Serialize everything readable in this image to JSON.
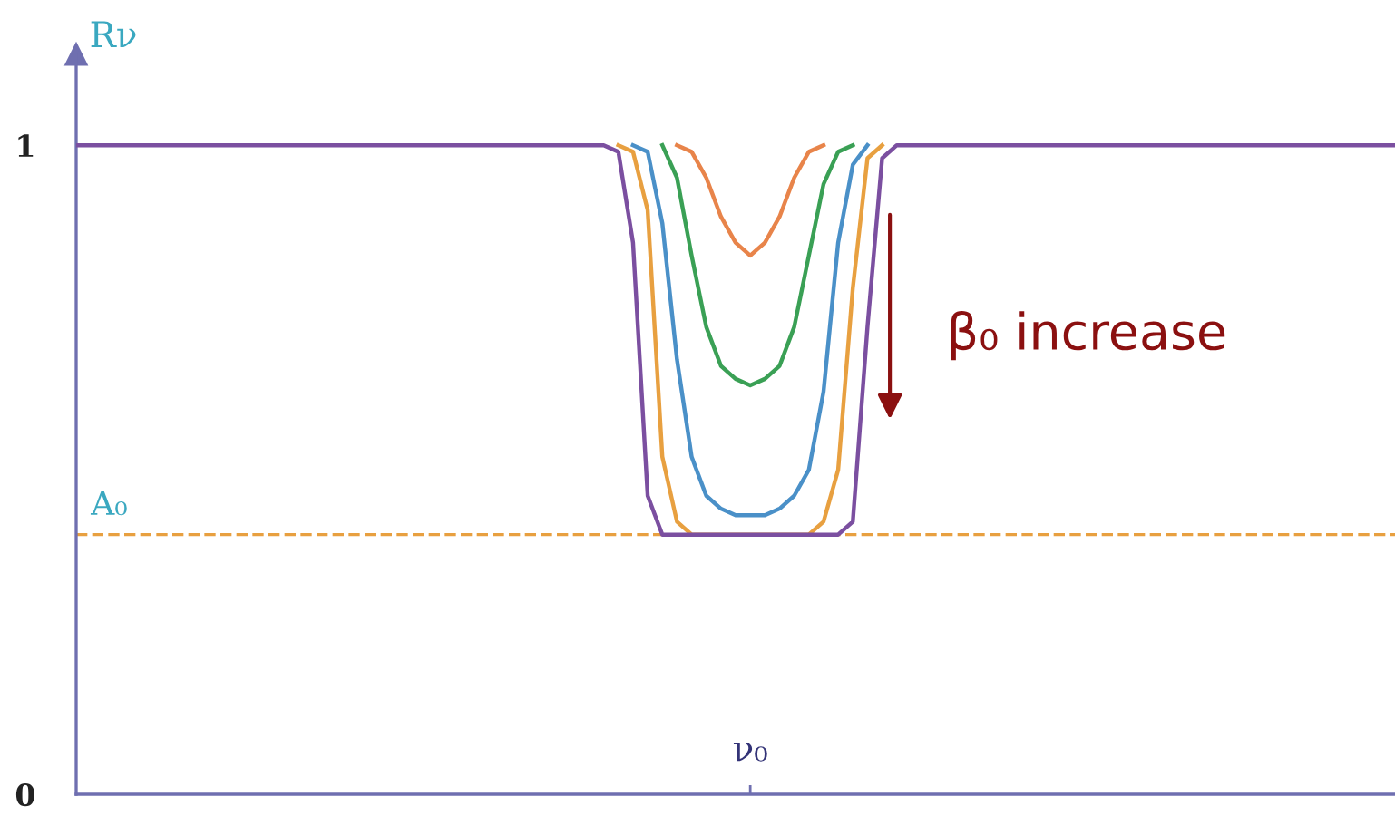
{
  "chart_data": {
    "type": "line",
    "ylabel": "Rν",
    "categories": [
      null,
      null,
      null,
      null,
      null,
      null,
      null,
      null,
      null,
      null,
      null,
      null,
      null,
      null,
      null,
      null,
      null,
      null,
      null,
      null,
      null,
      null,
      null,
      null,
      null,
      null,
      null,
      null,
      null,
      null,
      null,
      null,
      null,
      null,
      null,
      null,
      null,
      null,
      null,
      null,
      null,
      null,
      null,
      null,
      null,
      null,
      null,
      null,
      null,
      null,
      null,
      null,
      null,
      null,
      null,
      null,
      null,
      null,
      null,
      null,
      null,
      null,
      null,
      null,
      null,
      null,
      null,
      null,
      null,
      null,
      null,
      null,
      null,
      null,
      null,
      null,
      null,
      null,
      null,
      null,
      null,
      null,
      null,
      null,
      null,
      null,
      null,
      null,
      null,
      null,
      null
    ],
    "ylim": [
      0,
      1.14
    ],
    "yticks": [
      0,
      1
    ],
    "grid": false,
    "legend": false,
    "marker": "none",
    "line_style": "solid",
    "series": [
      {
        "color": "#7b4fa0",
        "values": [
          1,
          1,
          1,
          1,
          1,
          1,
          1,
          1,
          1,
          1,
          1,
          1,
          1,
          1,
          1,
          1,
          1,
          1,
          1,
          1,
          1,
          1,
          1,
          1,
          1,
          1,
          1,
          1,
          1,
          1,
          1,
          1,
          1,
          1,
          1,
          1,
          1,
          0.99,
          0.85,
          0.46,
          0.4,
          0.4,
          0.4,
          0.4,
          0.4,
          0.4,
          0.4,
          0.4,
          0.4,
          0.4,
          0.4,
          0.4,
          0.4,
          0.42,
          0.72,
          0.98,
          1,
          1,
          1,
          1,
          1,
          1,
          1,
          1,
          1,
          1,
          1,
          1,
          1,
          1,
          1,
          1,
          1,
          1,
          1,
          1,
          1,
          1,
          1,
          1,
          1,
          1,
          1,
          1,
          1,
          1,
          1,
          1,
          1,
          1,
          1
        ]
      },
      {
        "color": "#e8a040",
        "values": [
          null,
          null,
          null,
          null,
          null,
          null,
          null,
          null,
          null,
          null,
          null,
          null,
          null,
          null,
          null,
          null,
          null,
          null,
          null,
          null,
          null,
          null,
          null,
          null,
          null,
          null,
          null,
          null,
          null,
          null,
          null,
          null,
          null,
          null,
          null,
          null,
          null,
          1,
          0.99,
          0.9,
          0.52,
          0.42,
          0.4,
          0.4,
          0.4,
          0.4,
          0.4,
          0.4,
          0.4,
          0.4,
          0.4,
          0.42,
          0.5,
          0.78,
          0.98,
          1,
          null,
          null,
          null,
          null,
          null,
          null,
          null,
          null,
          null,
          null,
          null,
          null,
          null,
          null,
          null,
          null,
          null,
          null,
          null,
          null,
          null,
          null,
          null,
          null,
          null,
          null,
          null,
          null,
          null,
          null,
          null,
          null,
          null,
          null,
          null
        ]
      },
      {
        "color": "#4a90c8",
        "values": [
          null,
          null,
          null,
          null,
          null,
          null,
          null,
          null,
          null,
          null,
          null,
          null,
          null,
          null,
          null,
          null,
          null,
          null,
          null,
          null,
          null,
          null,
          null,
          null,
          null,
          null,
          null,
          null,
          null,
          null,
          null,
          null,
          null,
          null,
          null,
          null,
          null,
          null,
          1,
          0.99,
          0.88,
          0.67,
          0.52,
          0.46,
          0.44,
          0.43,
          0.43,
          0.43,
          0.44,
          0.46,
          0.5,
          0.62,
          0.85,
          0.97,
          1,
          null,
          null,
          null,
          null,
          null,
          null,
          null,
          null,
          null,
          null,
          null,
          null,
          null,
          null,
          null,
          null,
          null,
          null,
          null,
          null,
          null,
          null,
          null,
          null,
          null,
          null,
          null,
          null,
          null,
          null,
          null,
          null,
          null,
          null,
          null,
          null
        ]
      },
      {
        "color": "#3aa055",
        "values": [
          null,
          null,
          null,
          null,
          null,
          null,
          null,
          null,
          null,
          null,
          null,
          null,
          null,
          null,
          null,
          null,
          null,
          null,
          null,
          null,
          null,
          null,
          null,
          null,
          null,
          null,
          null,
          null,
          null,
          null,
          null,
          null,
          null,
          null,
          null,
          null,
          null,
          null,
          null,
          null,
          1,
          0.95,
          0.83,
          0.72,
          0.66,
          0.64,
          0.63,
          0.64,
          0.66,
          0.72,
          0.83,
          0.94,
          0.99,
          1,
          null,
          null,
          null,
          null,
          null,
          null,
          null,
          null,
          null,
          null,
          null,
          null,
          null,
          null,
          null,
          null,
          null,
          null,
          null,
          null,
          null,
          null,
          null,
          null,
          null,
          null,
          null,
          null,
          null,
          null,
          null,
          null,
          null,
          null,
          null,
          null,
          null
        ]
      },
      {
        "color": "#e8844a",
        "values": [
          null,
          null,
          null,
          null,
          null,
          null,
          null,
          null,
          null,
          null,
          null,
          null,
          null,
          null,
          null,
          null,
          null,
          null,
          null,
          null,
          null,
          null,
          null,
          null,
          null,
          null,
          null,
          null,
          null,
          null,
          null,
          null,
          null,
          null,
          null,
          null,
          null,
          null,
          null,
          null,
          null,
          1,
          0.99,
          0.95,
          0.89,
          0.85,
          0.83,
          0.85,
          0.89,
          0.95,
          0.99,
          1,
          null,
          null,
          null,
          null,
          null,
          null,
          null,
          null,
          null,
          null,
          null,
          null,
          null,
          null,
          null,
          null,
          null,
          null,
          null,
          null,
          null,
          null,
          null,
          null,
          null,
          null,
          null,
          null,
          null,
          null,
          null,
          null,
          null,
          null,
          null,
          null,
          null,
          null,
          null
        ]
      }
    ],
    "ref_lines": [
      {
        "axis": "y",
        "value": 0.4,
        "label": "A₀",
        "color": "#e8a040",
        "line_style": "dashed"
      }
    ],
    "annotations": [
      "β₀ increase",
      "ν₀"
    ]
  }
}
